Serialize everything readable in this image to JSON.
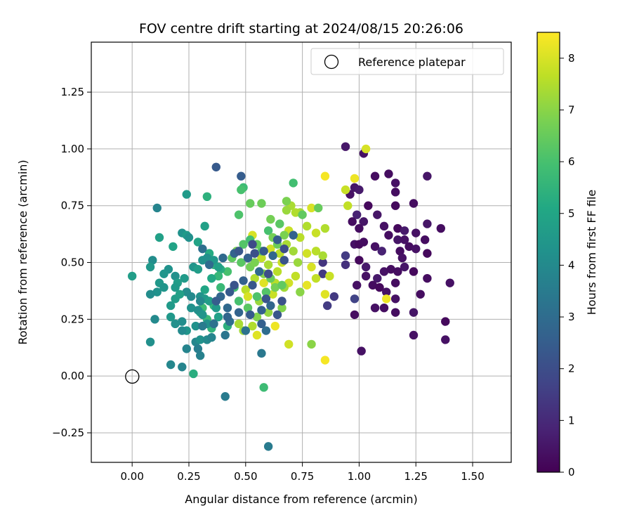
{
  "chart_data": {
    "type": "scatter",
    "title": "FOV centre drift starting at 2024/08/15 20:26:06",
    "xlabel": "Angular distance from reference (arcmin)",
    "ylabel": "Rotation from reference (arcmin)",
    "xlim": [
      -0.18,
      1.67
    ],
    "ylim": [
      -0.38,
      1.47
    ],
    "xticks": [
      0.0,
      0.25,
      0.5,
      0.75,
      1.0,
      1.25,
      1.5
    ],
    "xtick_labels": [
      "0.00",
      "0.25",
      "0.50",
      "0.75",
      "1.00",
      "1.25",
      "1.50"
    ],
    "yticks": [
      -0.25,
      0.0,
      0.25,
      0.5,
      0.75,
      1.0,
      1.25
    ],
    "ytick_labels": [
      "−0.25",
      "0.00",
      "0.25",
      "0.50",
      "0.75",
      "1.00",
      "1.25"
    ],
    "grid": true,
    "legend": {
      "placement": "top-right",
      "entries": [
        "Reference platepar"
      ]
    },
    "reference_point": {
      "x": 0.0,
      "y": 0.0,
      "label": "Reference platepar"
    },
    "colorbar": {
      "label": "Hours from first FF file",
      "colormap": "viridis",
      "range": [
        0,
        8.5
      ],
      "ticks": [
        0,
        1,
        2,
        3,
        4,
        5,
        6,
        7,
        8
      ],
      "tick_labels": [
        "0",
        "1",
        "2",
        "3",
        "4",
        "5",
        "6",
        "7",
        "8"
      ]
    },
    "points": [
      [
        0.94,
        1.01,
        0.55
      ],
      [
        1.02,
        0.98,
        0.4
      ],
      [
        1.07,
        0.88,
        0.3
      ],
      [
        1.13,
        0.89,
        0.3
      ],
      [
        1.3,
        0.88,
        0.5
      ],
      [
        1.16,
        0.85,
        0.4
      ],
      [
        1.16,
        0.81,
        0.3
      ],
      [
        0.98,
        0.83,
        0.5
      ],
      [
        1.0,
        0.82,
        0.6
      ],
      [
        0.96,
        0.8,
        0.4
      ],
      [
        1.04,
        0.75,
        0.2
      ],
      [
        1.24,
        0.76,
        0.3
      ],
      [
        1.16,
        0.75,
        0.2
      ],
      [
        1.08,
        0.71,
        0.5
      ],
      [
        0.99,
        0.71,
        0.8
      ],
      [
        1.3,
        0.67,
        0.5
      ],
      [
        1.02,
        0.68,
        0.5
      ],
      [
        0.97,
        0.68,
        0.3
      ],
      [
        1.11,
        0.66,
        0.4
      ],
      [
        1.0,
        0.65,
        0.3
      ],
      [
        1.17,
        0.65,
        0.2
      ],
      [
        1.2,
        0.64,
        0.6
      ],
      [
        1.25,
        0.63,
        0.4
      ],
      [
        1.36,
        0.65,
        0.3
      ],
      [
        1.13,
        0.62,
        0.3
      ],
      [
        1.17,
        0.6,
        0.5
      ],
      [
        1.2,
        0.6,
        0.4
      ],
      [
        1.29,
        0.6,
        0.3
      ],
      [
        0.98,
        0.58,
        0.4
      ],
      [
        1.0,
        0.58,
        0.2
      ],
      [
        1.02,
        0.59,
        0.3
      ],
      [
        1.07,
        0.57,
        0.4
      ],
      [
        1.1,
        0.55,
        0.8
      ],
      [
        1.18,
        0.55,
        0.3
      ],
      [
        1.22,
        0.57,
        0.3
      ],
      [
        1.25,
        0.56,
        0.4
      ],
      [
        1.19,
        0.52,
        0.4
      ],
      [
        1.3,
        0.54,
        0.2
      ],
      [
        0.94,
        0.53,
        1.5
      ],
      [
        1.0,
        0.51,
        0.2
      ],
      [
        0.94,
        0.49,
        1.2
      ],
      [
        1.03,
        0.48,
        0.6
      ],
      [
        1.11,
        0.46,
        0.4
      ],
      [
        1.14,
        0.47,
        0.3
      ],
      [
        1.2,
        0.48,
        0.5
      ],
      [
        1.17,
        0.46,
        0.3
      ],
      [
        1.24,
        0.46,
        0.2
      ],
      [
        1.03,
        0.44,
        0.4
      ],
      [
        1.08,
        0.43,
        0.6
      ],
      [
        0.99,
        0.4,
        0.4
      ],
      [
        1.06,
        0.4,
        0.3
      ],
      [
        1.09,
        0.39,
        0.2
      ],
      [
        1.16,
        0.41,
        0.3
      ],
      [
        1.3,
        0.43,
        0.3
      ],
      [
        1.4,
        0.41,
        0.4
      ],
      [
        1.27,
        0.36,
        0.3
      ],
      [
        1.12,
        0.37,
        0.4
      ],
      [
        1.16,
        0.34,
        0.4
      ],
      [
        0.98,
        0.34,
        1.7
      ],
      [
        1.07,
        0.3,
        0.4
      ],
      [
        1.11,
        0.3,
        0.3
      ],
      [
        0.98,
        0.27,
        0.3
      ],
      [
        1.16,
        0.28,
        0.3
      ],
      [
        1.24,
        0.28,
        0.5
      ],
      [
        1.38,
        0.24,
        0.2
      ],
      [
        1.24,
        0.18,
        0.4
      ],
      [
        1.38,
        0.16,
        0.4
      ],
      [
        1.01,
        0.11,
        0.4
      ],
      [
        0.86,
        0.31,
        1.5
      ],
      [
        0.89,
        0.35,
        1.4
      ],
      [
        0.84,
        0.45,
        1.4
      ],
      [
        0.84,
        0.5,
        1.3
      ],
      [
        1.03,
        1.0,
        8.0
      ],
      [
        0.98,
        0.87,
        8.3
      ],
      [
        0.85,
        0.88,
        8.4
      ],
      [
        0.94,
        0.82,
        7.8
      ],
      [
        0.95,
        0.75,
        7.7
      ],
      [
        0.85,
        0.65,
        7.5
      ],
      [
        0.74,
        0.72,
        7.3
      ],
      [
        0.79,
        0.74,
        8.0
      ],
      [
        0.82,
        0.74,
        6.5
      ],
      [
        0.7,
        0.75,
        7.4
      ],
      [
        0.68,
        0.73,
        7.2
      ],
      [
        0.68,
        0.77,
        6.8
      ],
      [
        0.72,
        0.72,
        7.5
      ],
      [
        0.69,
        0.64,
        7.8
      ],
      [
        0.77,
        0.66,
        7.5
      ],
      [
        0.81,
        0.63,
        7.8
      ],
      [
        0.74,
        0.61,
        7.6
      ],
      [
        0.68,
        0.58,
        7.4
      ],
      [
        0.71,
        0.55,
        7.3
      ],
      [
        0.65,
        0.54,
        7.6
      ],
      [
        0.61,
        0.56,
        7.9
      ],
      [
        0.57,
        0.52,
        7.7
      ],
      [
        0.6,
        0.49,
        7.4
      ],
      [
        0.64,
        0.46,
        7.6
      ],
      [
        0.66,
        0.5,
        7.8
      ],
      [
        0.73,
        0.5,
        7.2
      ],
      [
        0.77,
        0.54,
        7.9
      ],
      [
        0.81,
        0.55,
        7.6
      ],
      [
        0.84,
        0.53,
        7.4
      ],
      [
        0.79,
        0.48,
        8.0
      ],
      [
        0.72,
        0.44,
        7.7
      ],
      [
        0.69,
        0.41,
        7.9
      ],
      [
        0.63,
        0.41,
        7.6
      ],
      [
        0.58,
        0.41,
        8.1
      ],
      [
        0.54,
        0.43,
        7.5
      ],
      [
        0.5,
        0.38,
        7.6
      ],
      [
        0.51,
        0.35,
        8.0
      ],
      [
        0.56,
        0.33,
        7.2
      ],
      [
        0.62,
        0.36,
        7.8
      ],
      [
        0.67,
        0.39,
        7.3
      ],
      [
        0.74,
        0.37,
        7.0
      ],
      [
        0.77,
        0.4,
        8.2
      ],
      [
        0.81,
        0.43,
        7.7
      ],
      [
        0.85,
        0.36,
        8.1
      ],
      [
        0.87,
        0.44,
        7.8
      ],
      [
        0.66,
        0.3,
        6.9
      ],
      [
        0.6,
        0.28,
        7.1
      ],
      [
        0.55,
        0.26,
        6.9
      ],
      [
        0.53,
        0.22,
        7.5
      ],
      [
        0.49,
        0.2,
        7.3
      ],
      [
        0.47,
        0.23,
        7.4
      ],
      [
        0.55,
        0.18,
        8.1
      ],
      [
        0.63,
        0.22,
        8.3
      ],
      [
        0.69,
        0.14,
        7.9
      ],
      [
        0.79,
        0.14,
        7.0
      ],
      [
        0.85,
        0.07,
        8.4
      ],
      [
        1.12,
        0.34,
        8.3
      ],
      [
        0.53,
        0.62,
        8.0
      ],
      [
        0.57,
        0.76,
        6.6
      ],
      [
        0.52,
        0.76,
        6.5
      ],
      [
        0.61,
        0.69,
        6.7
      ],
      [
        0.65,
        0.67,
        6.3
      ],
      [
        0.67,
        0.62,
        6.8
      ],
      [
        0.75,
        0.71,
        6.4
      ],
      [
        0.71,
        0.85,
        5.9
      ],
      [
        0.47,
        0.71,
        6.1
      ],
      [
        0.52,
        0.6,
        5.9
      ],
      [
        0.49,
        0.58,
        6.2
      ],
      [
        0.55,
        0.58,
        6.5
      ],
      [
        0.57,
        0.55,
        6.3
      ],
      [
        0.6,
        0.64,
        6.0
      ],
      [
        0.62,
        0.61,
        6.7
      ],
      [
        0.64,
        0.58,
        6.6
      ],
      [
        0.46,
        0.55,
        6.8
      ],
      [
        0.44,
        0.52,
        6.4
      ],
      [
        0.48,
        0.5,
        6.3
      ],
      [
        0.52,
        0.48,
        6.7
      ],
      [
        0.54,
        0.5,
        6.8
      ],
      [
        0.58,
        0.45,
        6.9
      ],
      [
        0.61,
        0.43,
        6.5
      ],
      [
        0.63,
        0.39,
        6.7
      ],
      [
        0.66,
        0.4,
        6.4
      ],
      [
        0.59,
        0.37,
        6.2
      ],
      [
        0.55,
        0.35,
        6.1
      ],
      [
        0.51,
        0.3,
        6.3
      ],
      [
        0.47,
        0.33,
        6.0
      ],
      [
        0.45,
        0.39,
        5.9
      ],
      [
        0.42,
        0.46,
        6.0
      ],
      [
        0.49,
        0.83,
        5.8
      ],
      [
        0.48,
        0.82,
        6.0
      ],
      [
        0.33,
        0.79,
        5.4
      ],
      [
        0.29,
        0.59,
        4.9
      ],
      [
        0.34,
        0.54,
        5.2
      ],
      [
        0.36,
        0.49,
        5.5
      ],
      [
        0.39,
        0.47,
        5.3
      ],
      [
        0.38,
        0.44,
        5.6
      ],
      [
        0.35,
        0.43,
        5.1
      ],
      [
        0.32,
        0.38,
        5.0
      ],
      [
        0.36,
        0.31,
        5.6
      ],
      [
        0.31,
        0.3,
        5.8
      ],
      [
        0.33,
        0.25,
        5.7
      ],
      [
        0.3,
        0.28,
        5.2
      ],
      [
        0.35,
        0.21,
        5.5
      ],
      [
        0.42,
        0.22,
        5.4
      ],
      [
        0.39,
        0.39,
        5.7
      ],
      [
        0.27,
        0.01,
        5.3
      ],
      [
        0.58,
        -0.05,
        5.8
      ],
      [
        0.32,
        0.66,
        4.8
      ],
      [
        0.24,
        0.8,
        4.6
      ],
      [
        0.11,
        0.74,
        3.8
      ],
      [
        0.22,
        0.63,
        4.3
      ],
      [
        0.24,
        0.62,
        4.6
      ],
      [
        0.25,
        0.61,
        4.2
      ],
      [
        0.12,
        0.61,
        4.8
      ],
      [
        0.18,
        0.57,
        4.9
      ],
      [
        0.09,
        0.51,
        4.1
      ],
      [
        0.08,
        0.48,
        4.5
      ],
      [
        0.16,
        0.47,
        4.3
      ],
      [
        0.14,
        0.45,
        4.4
      ],
      [
        0.19,
        0.44,
        4.2
      ],
      [
        0.23,
        0.43,
        4.6
      ],
      [
        0.27,
        0.48,
        4.4
      ],
      [
        0.29,
        0.47,
        4.7
      ],
      [
        0.31,
        0.51,
        4.3
      ],
      [
        0.33,
        0.52,
        4.2
      ],
      [
        0.36,
        0.51,
        4.5
      ],
      [
        0.38,
        0.48,
        4.8
      ],
      [
        0.2,
        0.41,
        4.7
      ],
      [
        0.12,
        0.41,
        4.5
      ],
      [
        0.11,
        0.37,
        4.3
      ],
      [
        0.08,
        0.36,
        4.1
      ],
      [
        0.14,
        0.39,
        4.4
      ],
      [
        0.19,
        0.39,
        4.6
      ],
      [
        0.24,
        0.37,
        4.1
      ],
      [
        0.26,
        0.35,
        4.0
      ],
      [
        0.3,
        0.35,
        4.3
      ],
      [
        0.32,
        0.34,
        4.5
      ],
      [
        0.34,
        0.33,
        4.7
      ],
      [
        0.37,
        0.3,
        4.6
      ],
      [
        0.38,
        0.26,
        4.8
      ],
      [
        0.33,
        0.23,
        4.2
      ],
      [
        0.28,
        0.22,
        4.3
      ],
      [
        0.24,
        0.2,
        4.4
      ],
      [
        0.22,
        0.24,
        4.1
      ],
      [
        0.19,
        0.23,
        4.2
      ],
      [
        0.17,
        0.26,
        4.5
      ],
      [
        0.17,
        0.31,
        4.6
      ],
      [
        0.19,
        0.34,
        4.7
      ],
      [
        0.21,
        0.36,
        4.8
      ],
      [
        0.26,
        0.3,
        4.3
      ],
      [
        0.29,
        0.29,
        4.2
      ],
      [
        0.31,
        0.27,
        4.4
      ],
      [
        0.22,
        0.2,
        4.0
      ],
      [
        0.24,
        0.12,
        3.8
      ],
      [
        0.28,
        0.15,
        3.9
      ],
      [
        0.3,
        0.16,
        4.3
      ],
      [
        0.3,
        0.09,
        3.7
      ],
      [
        0.33,
        0.16,
        4.0
      ],
      [
        0.35,
        0.17,
        3.8
      ],
      [
        0.08,
        0.15,
        4.2
      ],
      [
        0.1,
        0.25,
        4.0
      ],
      [
        0.0,
        0.44,
        4.7
      ],
      [
        0.17,
        0.05,
        3.9
      ],
      [
        0.22,
        0.04,
        3.8
      ],
      [
        0.29,
        0.12,
        3.6
      ],
      [
        0.3,
        0.33,
        3.9
      ],
      [
        0.31,
        0.22,
        3.5
      ],
      [
        0.37,
        0.92,
        2.4
      ],
      [
        0.48,
        0.88,
        2.5
      ],
      [
        0.31,
        0.56,
        3.1
      ],
      [
        0.34,
        0.49,
        3.0
      ],
      [
        0.4,
        0.52,
        2.9
      ],
      [
        0.45,
        0.54,
        2.7
      ],
      [
        0.47,
        0.55,
        2.3
      ],
      [
        0.51,
        0.52,
        2.6
      ],
      [
        0.54,
        0.54,
        2.1
      ],
      [
        0.53,
        0.58,
        1.9
      ],
      [
        0.58,
        0.55,
        2.4
      ],
      [
        0.62,
        0.53,
        2.8
      ],
      [
        0.67,
        0.51,
        2.2
      ],
      [
        0.64,
        0.6,
        2.5
      ],
      [
        0.67,
        0.56,
        2.0
      ],
      [
        0.71,
        0.62,
        2.7
      ],
      [
        0.56,
        0.46,
        2.9
      ],
      [
        0.53,
        0.4,
        2.3
      ],
      [
        0.49,
        0.42,
        2.6
      ],
      [
        0.45,
        0.4,
        2.2
      ],
      [
        0.43,
        0.37,
        2.4
      ],
      [
        0.39,
        0.35,
        2.8
      ],
      [
        0.37,
        0.33,
        2.5
      ],
      [
        0.42,
        0.3,
        2.9
      ],
      [
        0.47,
        0.28,
        2.7
      ],
      [
        0.52,
        0.27,
        2.4
      ],
      [
        0.57,
        0.29,
        2.6
      ],
      [
        0.59,
        0.34,
        2.2
      ],
      [
        0.61,
        0.31,
        2.8
      ],
      [
        0.64,
        0.27,
        2.3
      ],
      [
        0.66,
        0.33,
        2.1
      ],
      [
        0.6,
        0.45,
        2.0
      ],
      [
        0.43,
        0.24,
        3.1
      ],
      [
        0.5,
        0.2,
        3.2
      ],
      [
        0.57,
        0.23,
        2.6
      ],
      [
        0.59,
        0.2,
        3.0
      ],
      [
        0.41,
        0.18,
        3.3
      ],
      [
        0.36,
        0.23,
        3.2
      ],
      [
        0.42,
        0.26,
        2.8
      ],
      [
        0.41,
        -0.09,
        3.5
      ],
      [
        0.6,
        -0.31,
        3.5
      ],
      [
        0.57,
        0.1,
        3.4
      ]
    ]
  }
}
